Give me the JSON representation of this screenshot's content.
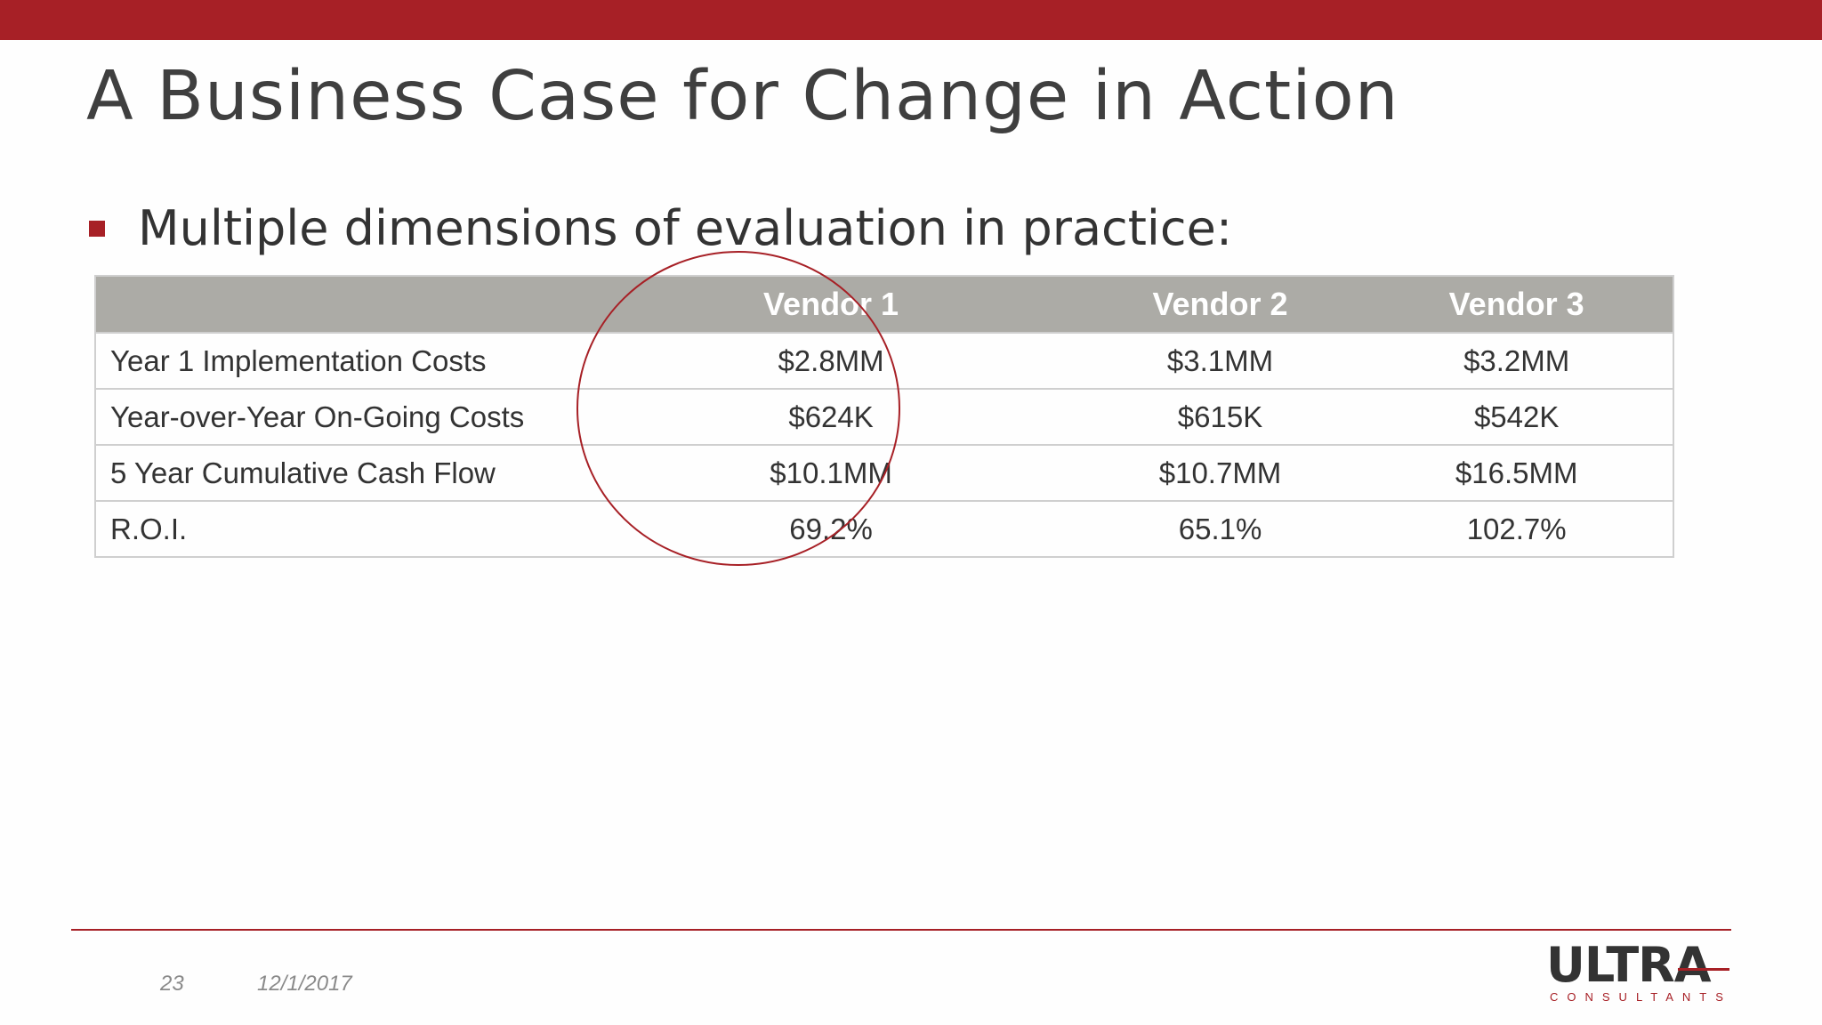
{
  "slide": {
    "title": "A Business Case for Change in Action",
    "bullet": "Multiple dimensions of evaluation in practice:"
  },
  "table": {
    "headers": [
      "",
      "Vendor 1",
      "Vendor 2",
      "Vendor 3"
    ],
    "rows": [
      {
        "label": "Year 1 Implementation Costs",
        "values": [
          "$2.8MM",
          "$3.1MM",
          "$3.2MM"
        ]
      },
      {
        "label": "Year-over-Year On-Going Costs",
        "values": [
          "$624K",
          "$615K",
          "$542K"
        ]
      },
      {
        "label": "5 Year Cumulative Cash Flow",
        "values": [
          "$10.1MM",
          "$10.7MM",
          "$16.5MM"
        ]
      },
      {
        "label": "R.O.I.",
        "values": [
          "69.2%",
          "65.1%",
          "102.7%"
        ]
      }
    ]
  },
  "footer": {
    "page_number": "23",
    "date": "12/1/2017",
    "logo_main": "ULTRA",
    "logo_sub": "CONSULTANTS"
  },
  "colors": {
    "brand_red": "#a72026",
    "header_gray": "#acaba6"
  }
}
